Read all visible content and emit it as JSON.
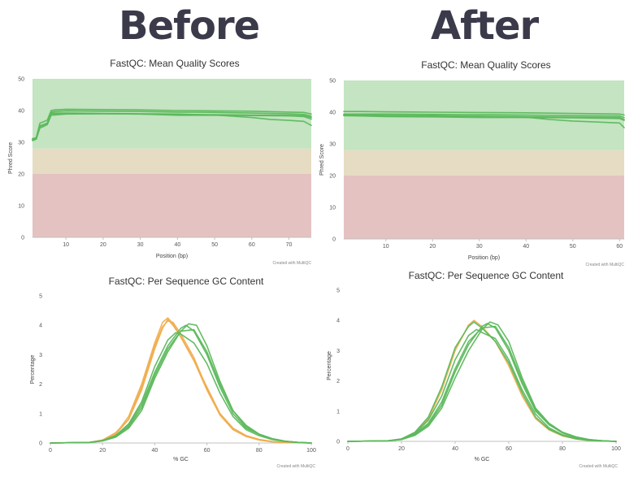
{
  "headings": {
    "before": "Before",
    "after": "After"
  },
  "colors": {
    "zone_good": "#c4e4c2",
    "zone_warn": "#e6dcc3",
    "zone_fail": "#e5c2c2",
    "line_green": "#5cb85c",
    "line_orange": "#f0ad4e",
    "axis": "#c0c0c0"
  },
  "chart_data": [
    {
      "id": "before_quality",
      "type": "line",
      "title": "FastQC: Mean Quality Scores",
      "xlabel": "Position (bp)",
      "ylabel": "Phred Score",
      "credit": "Created with MultiQC",
      "xlim": [
        1,
        76
      ],
      "ylim": [
        0,
        50
      ],
      "xticks": [
        10,
        20,
        30,
        40,
        50,
        60,
        70
      ],
      "yticks": [
        0,
        10,
        20,
        30,
        40,
        50
      ],
      "zones": [
        {
          "from": 0,
          "to": 20,
          "color": "#e5c2c2"
        },
        {
          "from": 20,
          "to": 28,
          "color": "#e6dcc3"
        },
        {
          "from": 28,
          "to": 50,
          "color": "#c4e4c2"
        }
      ],
      "series": [
        {
          "color": "#5cb85c",
          "x": [
            1,
            2,
            3,
            4,
            5,
            6,
            7,
            10,
            20,
            30,
            40,
            50,
            60,
            70,
            74,
            76
          ],
          "y": [
            31,
            31.5,
            36,
            36.5,
            37,
            40,
            40.2,
            40.4,
            40.3,
            40.2,
            40,
            39.9,
            39.8,
            39.5,
            39.4,
            38.9
          ]
        },
        {
          "color": "#5cb85c",
          "x": [
            1,
            2,
            3,
            4,
            5,
            6,
            7,
            10,
            20,
            30,
            40,
            50,
            60,
            70,
            74,
            76
          ],
          "y": [
            31.2,
            31.2,
            35,
            35.5,
            36,
            39.5,
            39.7,
            39.9,
            39.8,
            39.7,
            39.5,
            39.4,
            39.2,
            39,
            38.8,
            38.2
          ]
        },
        {
          "color": "#5cb85c",
          "x": [
            1,
            2,
            3,
            4,
            5,
            6,
            7,
            10,
            20,
            30,
            40,
            50,
            60,
            70,
            74,
            76
          ],
          "y": [
            31,
            31,
            35,
            35.5,
            36,
            39,
            38.9,
            39,
            39,
            38.9,
            38.8,
            38.7,
            38.6,
            38.5,
            38.4,
            37.8
          ]
        },
        {
          "color": "#5cb85c",
          "x": [
            1,
            2,
            3,
            4,
            5,
            6,
            7,
            10,
            20,
            30,
            40,
            50,
            60,
            70,
            74,
            76
          ],
          "y": [
            30.5,
            31,
            34.5,
            35,
            35.6,
            38.5,
            38.6,
            38.9,
            39,
            38.9,
            38.5,
            38.5,
            38.4,
            38.3,
            38.1,
            37.3
          ]
        },
        {
          "color": "#5cb85c",
          "x": [
            1,
            2,
            3,
            4,
            5,
            6,
            7,
            10,
            20,
            30,
            40,
            50,
            60,
            65,
            70,
            74,
            76
          ],
          "y": [
            30.8,
            31.1,
            35.2,
            35.6,
            36.1,
            39.3,
            39.2,
            39.2,
            39.1,
            39,
            38.9,
            38.6,
            37.8,
            37.2,
            36.9,
            36.6,
            35.3
          ]
        }
      ]
    },
    {
      "id": "after_quality",
      "type": "line",
      "title": "FastQC: Mean Quality Scores",
      "xlabel": "Position (bp)",
      "ylabel": "Phred Score",
      "credit": "Created with MultiQC",
      "xlim": [
        1,
        61
      ],
      "ylim": [
        0,
        50
      ],
      "xticks": [
        10,
        20,
        30,
        40,
        50,
        60
      ],
      "yticks": [
        0,
        10,
        20,
        30,
        40,
        50
      ],
      "zones": [
        {
          "from": 0,
          "to": 20,
          "color": "#e5c2c2"
        },
        {
          "from": 20,
          "to": 28,
          "color": "#e6dcc3"
        },
        {
          "from": 28,
          "to": 50,
          "color": "#c4e4c2"
        }
      ],
      "series": [
        {
          "color": "#5cb85c",
          "x": [
            1,
            5,
            10,
            20,
            30,
            40,
            50,
            60,
            61
          ],
          "y": [
            40.2,
            40.2,
            40.1,
            40,
            39.9,
            39.8,
            39.6,
            39.4,
            39.1
          ]
        },
        {
          "color": "#5cb85c",
          "x": [
            1,
            5,
            10,
            20,
            30,
            40,
            50,
            60,
            61
          ],
          "y": [
            39.4,
            39.4,
            39.4,
            39.3,
            39.2,
            39.1,
            38.9,
            38.8,
            38.3
          ]
        },
        {
          "color": "#5cb85c",
          "x": [
            1,
            5,
            10,
            20,
            30,
            40,
            50,
            60,
            61
          ],
          "y": [
            39,
            38.9,
            38.9,
            38.8,
            38.7,
            38.6,
            38.4,
            38.3,
            37.7
          ]
        },
        {
          "color": "#5cb85c",
          "x": [
            1,
            5,
            10,
            20,
            30,
            40,
            50,
            60,
            61
          ],
          "y": [
            38.9,
            38.8,
            38.6,
            38.5,
            38.3,
            38.3,
            38.2,
            38,
            37.4
          ]
        },
        {
          "color": "#5cb85c",
          "x": [
            1,
            5,
            10,
            20,
            30,
            40,
            45,
            50,
            55,
            60,
            61
          ],
          "y": [
            39.2,
            39.1,
            39,
            38.9,
            38.7,
            38.4,
            37.7,
            37.2,
            36.9,
            36.6,
            35.1
          ]
        }
      ]
    },
    {
      "id": "before_gc",
      "type": "line",
      "title": "FastQC: Per Sequence GC Content",
      "xlabel": "% GC",
      "ylabel": "Percentage",
      "credit": "Created with MultiQC",
      "xlim": [
        0,
        100
      ],
      "ylim": [
        0,
        5
      ],
      "xticks": [
        0,
        20,
        40,
        60,
        80,
        100
      ],
      "yticks": [
        0,
        1,
        2,
        3,
        4,
        5
      ],
      "series": [
        {
          "color": "#f0ad4e",
          "x": [
            0,
            15,
            20,
            25,
            30,
            35,
            40,
            43,
            45,
            47,
            50,
            55,
            60,
            65,
            70,
            75,
            80,
            85,
            90,
            95,
            100
          ],
          "y": [
            0,
            0.02,
            0.1,
            0.3,
            0.8,
            1.8,
            3.2,
            3.9,
            4.2,
            4.0,
            3.6,
            2.8,
            1.9,
            1.0,
            0.5,
            0.25,
            0.12,
            0.05,
            0.02,
            0.01,
            0
          ]
        },
        {
          "color": "#f0ad4e",
          "x": [
            0,
            15,
            20,
            25,
            30,
            35,
            40,
            43,
            45,
            47,
            50,
            55,
            60,
            65,
            70,
            75,
            80,
            85,
            90,
            95,
            100
          ],
          "y": [
            0,
            0.02,
            0.1,
            0.3,
            0.9,
            2.0,
            3.4,
            4.1,
            4.25,
            4.05,
            3.6,
            2.8,
            1.8,
            0.95,
            0.45,
            0.22,
            0.1,
            0.04,
            0.02,
            0.01,
            0
          ]
        },
        {
          "color": "#f0ad4e",
          "x": [
            0,
            15,
            20,
            25,
            30,
            35,
            40,
            43,
            45,
            47,
            50,
            55,
            60,
            65,
            70,
            75,
            80,
            85,
            90,
            95,
            100
          ],
          "y": [
            0,
            0.02,
            0.1,
            0.35,
            0.8,
            1.9,
            3.3,
            3.95,
            4.15,
            4.1,
            3.7,
            2.9,
            1.85,
            1.0,
            0.5,
            0.25,
            0.12,
            0.05,
            0.02,
            0.01,
            0
          ]
        },
        {
          "color": "#5cb85c",
          "x": [
            0,
            15,
            20,
            25,
            30,
            35,
            40,
            45,
            50,
            52,
            55,
            60,
            65,
            70,
            75,
            80,
            85,
            90,
            95,
            100
          ],
          "y": [
            0,
            0.02,
            0.08,
            0.25,
            0.6,
            1.3,
            2.4,
            3.3,
            3.9,
            4.0,
            3.8,
            3.0,
            1.9,
            1.0,
            0.5,
            0.3,
            0.15,
            0.06,
            0.02,
            0
          ]
        },
        {
          "color": "#5cb85c",
          "x": [
            0,
            15,
            20,
            25,
            30,
            35,
            40,
            45,
            50,
            53,
            56,
            60,
            65,
            70,
            75,
            80,
            85,
            90,
            95,
            100
          ],
          "y": [
            0,
            0.02,
            0.07,
            0.2,
            0.5,
            1.1,
            2.2,
            3.1,
            3.8,
            4.05,
            4.0,
            3.3,
            2.1,
            1.1,
            0.6,
            0.3,
            0.15,
            0.06,
            0.02,
            0
          ]
        },
        {
          "color": "#5cb85c",
          "x": [
            0,
            15,
            20,
            25,
            30,
            35,
            40,
            45,
            48,
            50,
            55,
            60,
            65,
            70,
            75,
            80,
            85,
            90,
            95,
            100
          ],
          "y": [
            0,
            0.02,
            0.08,
            0.25,
            0.65,
            1.4,
            2.6,
            3.5,
            3.75,
            3.7,
            3.4,
            2.7,
            1.7,
            0.9,
            0.45,
            0.25,
            0.12,
            0.05,
            0.02,
            0
          ]
        },
        {
          "color": "#5cb85c",
          "x": [
            0,
            15,
            20,
            25,
            30,
            35,
            40,
            45,
            50,
            55,
            60,
            65,
            70,
            75,
            80,
            85,
            90,
            95,
            100
          ],
          "y": [
            0,
            0.02,
            0.07,
            0.22,
            0.55,
            1.2,
            2.3,
            3.2,
            3.8,
            3.85,
            3.1,
            2.0,
            1.1,
            0.55,
            0.3,
            0.14,
            0.06,
            0.02,
            0
          ]
        }
      ]
    },
    {
      "id": "after_gc",
      "type": "line",
      "title": "FastQC: Per Sequence GC Content",
      "xlabel": "% GC",
      "ylabel": "Percentage",
      "credit": "Created with MultiQC",
      "xlim": [
        0,
        100
      ],
      "ylim": [
        0,
        5
      ],
      "xticks": [
        0,
        20,
        40,
        60,
        80,
        100
      ],
      "yticks": [
        0,
        1,
        2,
        3,
        4,
        5
      ],
      "series": [
        {
          "color": "#f0ad4e",
          "x": [
            0,
            15,
            20,
            25,
            30,
            35,
            40,
            45,
            47,
            50,
            55,
            60,
            65,
            70,
            75,
            80,
            85,
            90,
            95,
            100
          ],
          "y": [
            0,
            0.02,
            0.08,
            0.28,
            0.75,
            1.7,
            3.0,
            3.85,
            4.0,
            3.8,
            3.3,
            2.5,
            1.5,
            0.75,
            0.38,
            0.18,
            0.08,
            0.03,
            0.01,
            0
          ]
        },
        {
          "color": "#5cb85c",
          "x": [
            0,
            15,
            20,
            25,
            30,
            35,
            40,
            45,
            47,
            50,
            55,
            60,
            65,
            70,
            75,
            80,
            85,
            90,
            95,
            100
          ],
          "y": [
            0,
            0.02,
            0.08,
            0.3,
            0.8,
            1.8,
            3.1,
            3.8,
            3.95,
            3.75,
            3.3,
            2.6,
            1.6,
            0.8,
            0.4,
            0.2,
            0.08,
            0.03,
            0.01,
            0
          ]
        },
        {
          "color": "#5cb85c",
          "x": [
            0,
            15,
            20,
            25,
            30,
            35,
            40,
            45,
            50,
            52,
            55,
            60,
            65,
            70,
            75,
            80,
            85,
            90,
            95,
            100
          ],
          "y": [
            0,
            0.02,
            0.07,
            0.22,
            0.55,
            1.2,
            2.3,
            3.2,
            3.8,
            3.9,
            3.75,
            3.0,
            1.9,
            1.0,
            0.55,
            0.3,
            0.14,
            0.06,
            0.02,
            0
          ]
        },
        {
          "color": "#5cb85c",
          "x": [
            0,
            15,
            20,
            25,
            30,
            35,
            40,
            45,
            50,
            53,
            56,
            60,
            65,
            70,
            75,
            80,
            85,
            90,
            95,
            100
          ],
          "y": [
            0,
            0.02,
            0.06,
            0.2,
            0.5,
            1.1,
            2.1,
            3.0,
            3.7,
            3.95,
            3.85,
            3.3,
            2.1,
            1.1,
            0.6,
            0.3,
            0.15,
            0.06,
            0.02,
            0
          ]
        },
        {
          "color": "#5cb85c",
          "x": [
            0,
            15,
            20,
            25,
            30,
            35,
            40,
            45,
            48,
            50,
            55,
            60,
            65,
            70,
            75,
            80,
            85,
            90,
            95,
            100
          ],
          "y": [
            0,
            0.02,
            0.08,
            0.26,
            0.7,
            1.5,
            2.7,
            3.5,
            3.7,
            3.6,
            3.4,
            2.7,
            1.7,
            0.9,
            0.45,
            0.22,
            0.1,
            0.04,
            0.01,
            0
          ]
        },
        {
          "color": "#5cb85c",
          "x": [
            0,
            15,
            20,
            25,
            30,
            35,
            40,
            45,
            50,
            55,
            60,
            65,
            70,
            75,
            80,
            85,
            90,
            95,
            100
          ],
          "y": [
            0,
            0.02,
            0.07,
            0.24,
            0.6,
            1.3,
            2.4,
            3.3,
            3.75,
            3.8,
            3.1,
            2.0,
            1.05,
            0.55,
            0.28,
            0.13,
            0.05,
            0.02,
            0
          ]
        }
      ]
    }
  ]
}
